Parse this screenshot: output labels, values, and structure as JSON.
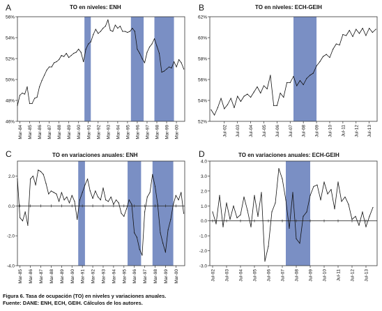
{
  "caption": {
    "line1": "Figura 6.  Tasa de ocupación (TO) en niveles y variaciones anuales.",
    "line2": "Fuente: DANE: ENH, ECH, GEIH. Cálculos de los autores."
  },
  "colors": {
    "recession": "#7a8fc4",
    "line": "#111111",
    "frame": "#333333"
  },
  "chart_data": [
    {
      "panel": "A",
      "type": "line",
      "title": "TO en niveles: ENH",
      "ylim": [
        46,
        56
      ],
      "yticks": [
        46,
        48,
        50,
        52,
        54,
        56
      ],
      "ytick_labels": [
        "46%",
        "48%",
        "50%",
        "52%",
        "54%",
        "56%"
      ],
      "xrange": [
        1984.0,
        2001.1
      ],
      "xticks": [
        1984.25,
        1985.25,
        1986.25,
        1987.25,
        1988.25,
        1989.25,
        1990.25,
        1991.25,
        1992.25,
        1993.25,
        1994.25,
        1995.25,
        1996.25,
        1997.25,
        1998.25,
        1999.25,
        2000.25
      ],
      "xtick_labels": [
        "Mar-84",
        "Mar-85",
        "Mar-86",
        "Mar-87",
        "Mar-88",
        "Mar-89",
        "Mar-90",
        "Mar-91",
        "Mar-92",
        "Mar-93",
        "Mar-94",
        "Mar-95",
        "Mar-96",
        "Mar-97",
        "Mar-98",
        "Mar-99",
        "Mar-00"
      ],
      "shaded_periods": [
        [
          1990.85,
          1991.5
        ],
        [
          1995.6,
          1996.9
        ],
        [
          1998.0,
          2000.0
        ]
      ],
      "x": [
        1984.0,
        1984.25,
        1984.5,
        1984.75,
        1985.0,
        1985.25,
        1985.5,
        1985.75,
        1986.0,
        1986.25,
        1986.5,
        1986.75,
        1987.0,
        1987.25,
        1987.5,
        1987.75,
        1988.0,
        1988.25,
        1988.5,
        1988.75,
        1989.0,
        1989.25,
        1989.5,
        1989.75,
        1990.0,
        1990.25,
        1990.5,
        1990.75,
        1991.0,
        1991.25,
        1991.5,
        1991.75,
        1992.0,
        1992.25,
        1992.5,
        1992.75,
        1993.0,
        1993.25,
        1993.5,
        1993.75,
        1994.0,
        1994.25,
        1994.5,
        1994.75,
        1995.0,
        1995.25,
        1995.5,
        1995.75,
        1996.0,
        1996.25,
        1996.5,
        1996.75,
        1997.0,
        1997.25,
        1997.5,
        1997.75,
        1998.0,
        1998.25,
        1998.5,
        1998.75,
        1999.0,
        1999.25,
        1999.5,
        1999.75,
        2000.0,
        2000.25,
        2000.5,
        2000.75,
        2001.0
      ],
      "y": [
        47.5,
        48.5,
        48.7,
        48.6,
        49.3,
        47.7,
        47.7,
        48.2,
        48.3,
        49.3,
        49.9,
        50.4,
        50.9,
        51.2,
        51.2,
        51.6,
        51.7,
        51.9,
        52.3,
        52.2,
        52.5,
        52.1,
        52.3,
        52.5,
        52.6,
        52.9,
        52.6,
        51.7,
        52.9,
        53.4,
        53.6,
        54.3,
        54.8,
        54.4,
        54.6,
        54.9,
        55.1,
        55.7,
        54.7,
        54.6,
        55.2,
        54.9,
        55.1,
        54.6,
        54.6,
        54.5,
        54.6,
        54.9,
        54.6,
        52.9,
        52.5,
        52.0,
        51.6,
        52.6,
        53.1,
        53.4,
        53.9,
        53.2,
        52.5,
        50.7,
        50.8,
        51.0,
        51.2,
        51.1,
        51.7,
        51.2,
        51.9,
        51.6,
        51.0
      ]
    },
    {
      "panel": "B",
      "type": "line",
      "title": "TO en niveles: ECH-GEIH",
      "ylim": [
        52,
        62
      ],
      "yticks": [
        52,
        54,
        56,
        58,
        60,
        62
      ],
      "ytick_labels": [
        "52%",
        "54%",
        "56%",
        "58%",
        "60%",
        "62%"
      ],
      "xrange": [
        2001.4,
        2014.1
      ],
      "xticks": [
        2002.5,
        2003.5,
        2004.5,
        2005.5,
        2006.5,
        2007.5,
        2008.5,
        2009.5,
        2010.5,
        2011.5,
        2012.5,
        2013.5
      ],
      "xtick_labels": [
        "Jul-02",
        "Jul-03",
        "Jul-04",
        "Jul-05",
        "Jul-06",
        "Jul-07",
        "Jul-08",
        "Jul-09",
        "Jul-10",
        "Jul-11",
        "Jul-12",
        "Jul-13"
      ],
      "shaded_periods": [
        [
          2007.75,
          2009.5
        ]
      ],
      "x": [
        2001.5,
        2001.75,
        2002.0,
        2002.25,
        2002.5,
        2002.75,
        2003.0,
        2003.25,
        2003.5,
        2003.75,
        2004.0,
        2004.25,
        2004.5,
        2004.75,
        2005.0,
        2005.25,
        2005.5,
        2005.75,
        2006.0,
        2006.25,
        2006.5,
        2006.75,
        2007.0,
        2007.25,
        2007.5,
        2007.75,
        2008.0,
        2008.25,
        2008.5,
        2008.75,
        2009.0,
        2009.25,
        2009.5,
        2009.75,
        2010.0,
        2010.25,
        2010.5,
        2010.75,
        2011.0,
        2011.25,
        2011.5,
        2011.75,
        2012.0,
        2012.25,
        2012.5,
        2012.75,
        2013.0,
        2013.25,
        2013.5,
        2013.75,
        2014.0
      ],
      "y": [
        53.1,
        52.6,
        53.3,
        54.2,
        53.2,
        53.6,
        54.2,
        53.3,
        54.4,
        53.9,
        54.4,
        54.6,
        54.3,
        54.8,
        55.3,
        54.7,
        55.4,
        55.1,
        56.4,
        53.5,
        53.5,
        54.7,
        54.3,
        55.7,
        55.7,
        56.3,
        55.4,
        55.9,
        55.5,
        56.1,
        56.4,
        56.6,
        57.3,
        57.7,
        58.2,
        58.4,
        58.1,
        58.9,
        59.4,
        59.3,
        60.3,
        60.2,
        60.7,
        60.1,
        60.8,
        60.4,
        60.9,
        60.2,
        60.9,
        60.5,
        60.8
      ]
    },
    {
      "panel": "C",
      "type": "line",
      "title": "TO en variaciones anuales: ENH",
      "ylim": [
        -4,
        3
      ],
      "yticks": [
        -4,
        -2,
        0,
        2
      ],
      "ytick_labels": [
        "-4.0",
        "-2.0",
        "0.0",
        "2.0"
      ],
      "xrange": [
        1985.0,
        2001.1
      ],
      "xticks": [
        1985.25,
        1986.25,
        1987.25,
        1988.25,
        1989.25,
        1990.25,
        1991.25,
        1992.25,
        1993.25,
        1994.25,
        1995.25,
        1996.25,
        1997.25,
        1998.25,
        1999.25,
        2000.25
      ],
      "xtick_labels": [
        "Mar-85",
        "Mar-86",
        "Mar-87",
        "Mar-88",
        "Mar-89",
        "Mar-90",
        "Mar-91",
        "Mar-92",
        "Mar-93",
        "Mar-94",
        "Mar-95",
        "Mar-96",
        "Mar-97",
        "Mar-98",
        "Mar-99",
        "Mar-00"
      ],
      "shaded_periods": [
        [
          1990.85,
          1991.5
        ],
        [
          1995.6,
          1996.9
        ],
        [
          1998.0,
          2000.0
        ]
      ],
      "x": [
        1985.0,
        1985.25,
        1985.5,
        1985.75,
        1986.0,
        1986.25,
        1986.5,
        1986.75,
        1987.0,
        1987.25,
        1987.5,
        1987.75,
        1988.0,
        1988.25,
        1988.5,
        1988.75,
        1989.0,
        1989.25,
        1989.5,
        1989.75,
        1990.0,
        1990.25,
        1990.5,
        1990.75,
        1991.0,
        1991.25,
        1991.5,
        1991.75,
        1992.0,
        1992.25,
        1992.5,
        1992.75,
        1993.0,
        1993.25,
        1993.5,
        1993.75,
        1994.0,
        1994.25,
        1994.5,
        1994.75,
        1995.0,
        1995.25,
        1995.5,
        1995.75,
        1996.0,
        1996.25,
        1996.5,
        1996.75,
        1997.0,
        1997.25,
        1997.5,
        1997.75,
        1998.0,
        1998.25,
        1998.5,
        1998.75,
        1999.0,
        1999.25,
        1999.5,
        1999.75,
        2000.0,
        2000.25,
        2000.5,
        2000.75,
        2001.0
      ],
      "y": [
        1.8,
        -0.8,
        -1.0,
        -0.4,
        -1.3,
        1.8,
        2.0,
        1.4,
        2.4,
        2.3,
        2.1,
        1.5,
        0.8,
        1.0,
        0.9,
        0.8,
        0.3,
        0.9,
        0.4,
        0.6,
        0.2,
        0.7,
        0.3,
        -0.9,
        0.4,
        0.9,
        1.4,
        1.8,
        1.0,
        0.5,
        1.0,
        0.6,
        0.4,
        1.2,
        0.4,
        0.3,
        0.6,
        0.1,
        0.4,
        0.2,
        -0.5,
        -0.7,
        -0.2,
        0.4,
        0.1,
        -1.8,
        -2.1,
        -2.9,
        -3.3,
        -0.4,
        0.6,
        0.9,
        2.1,
        1.3,
        0.1,
        -1.8,
        -2.5,
        -3.1,
        -1.6,
        -0.9,
        0.1,
        0.7,
        0.4,
        0.9,
        -0.5
      ]
    },
    {
      "panel": "D",
      "type": "line",
      "title": "TO en variaciones anuales: ECH-GEIH",
      "ylim": [
        -3,
        4
      ],
      "yticks": [
        -3,
        -2,
        -1,
        0,
        1,
        2,
        3,
        4
      ],
      "ytick_labels": [
        "-3.0",
        "-2.0",
        "-1.0",
        "0.0",
        "1.0",
        "2.0",
        "3.0",
        "4.0"
      ],
      "xrange": [
        2002.3,
        2014.3
      ],
      "xticks": [
        2002.5,
        2003.5,
        2004.5,
        2005.5,
        2006.5,
        2007.5,
        2008.5,
        2009.5,
        2010.5,
        2011.5,
        2012.5,
        2013.5
      ],
      "xtick_labels": [
        "Jul-02",
        "Jul-03",
        "Jul-04",
        "Jul-05",
        "Jul-06",
        "Jul-07",
        "Jul-08",
        "Jul-09",
        "Jul-10",
        "Jul-11",
        "Jul-12",
        "Jul-13"
      ],
      "shaded_periods": [
        [
          2007.75,
          2009.5
        ]
      ],
      "x": [
        2002.5,
        2002.75,
        2003.0,
        2003.25,
        2003.5,
        2003.75,
        2004.0,
        2004.25,
        2004.5,
        2004.75,
        2005.0,
        2005.25,
        2005.5,
        2005.75,
        2006.0,
        2006.25,
        2006.5,
        2006.75,
        2007.0,
        2007.25,
        2007.5,
        2007.75,
        2008.0,
        2008.25,
        2008.5,
        2008.75,
        2009.0,
        2009.25,
        2009.5,
        2009.75,
        2010.0,
        2010.25,
        2010.5,
        2010.75,
        2011.0,
        2011.25,
        2011.5,
        2011.75,
        2012.0,
        2012.25,
        2012.5,
        2012.75,
        2013.0,
        2013.25,
        2013.5,
        2013.75,
        2014.0
      ],
      "y": [
        0.6,
        -0.2,
        1.7,
        -0.4,
        1.2,
        0.1,
        1.0,
        0.2,
        0.4,
        1.6,
        0.7,
        -0.4,
        1.7,
        0.3,
        1.9,
        -2.7,
        -1.7,
        0.6,
        1.2,
        3.5,
        2.8,
        1.4,
        -0.5,
        1.9,
        -1.2,
        -1.5,
        0.3,
        0.6,
        1.7,
        2.3,
        2.4,
        1.4,
        2.6,
        1.8,
        2.1,
        0.8,
        2.6,
        1.3,
        1.6,
        1.1,
        0.1,
        0.3,
        -0.3,
        0.6,
        -0.4,
        0.3,
        0.9
      ]
    }
  ]
}
